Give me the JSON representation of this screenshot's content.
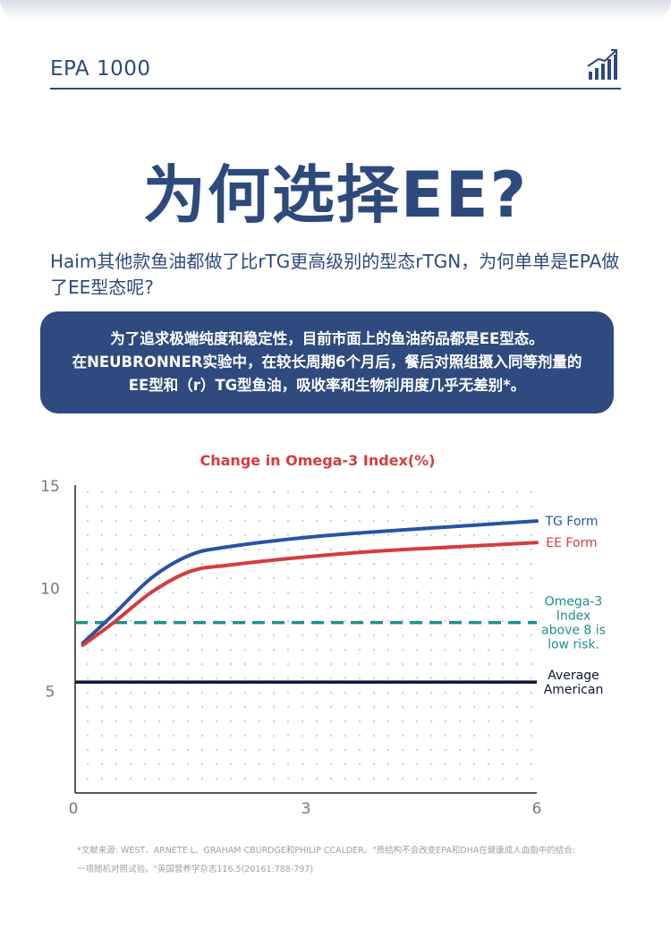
{
  "header": {
    "label": "EPA 1000",
    "icon": "bar-chart-growth-icon"
  },
  "headline": "为何选择EE?",
  "intro": "Haim其他款鱼油都做了比rTG更高级别的型态rTGN，为何单单是EPA做了EE型态呢?",
  "callout": {
    "line1": "为了追求极端纯度和稳定性，目前市面上的鱼油药品都是EE型态。",
    "line2": "在NEUBRONNER实验中，在较长周期6个月后，餐后对照组摄入同等剂量的",
    "line3": "EE型和（r）TG型鱼油，吸收率和生物利用度几乎无差别*。"
  },
  "chart_data": {
    "type": "line",
    "title": "Change in Omega-3 Index(%)",
    "xlabel": "",
    "ylabel": "",
    "xlim": [
      0,
      6
    ],
    "ylim": [
      0,
      15
    ],
    "xticks": [
      0,
      3,
      6
    ],
    "yticks": [
      5,
      10,
      15
    ],
    "grid": "dotted",
    "series": [
      {
        "name": "TG Form",
        "color": "#2754a4",
        "x": [
          0.1,
          0.5,
          1.0,
          1.5,
          2.0,
          3.0,
          4.0,
          5.0,
          6.0
        ],
        "y": [
          7.3,
          8.7,
          10.5,
          11.6,
          12.0,
          12.45,
          12.75,
          13.0,
          13.25
        ]
      },
      {
        "name": "EE Form",
        "color": "#d43c3c",
        "x": [
          0.1,
          0.5,
          1.0,
          1.5,
          2.0,
          3.0,
          4.0,
          5.0,
          6.0
        ],
        "y": [
          7.2,
          8.3,
          9.8,
          10.8,
          11.1,
          11.5,
          11.8,
          12.0,
          12.2
        ]
      }
    ],
    "reference_lines": [
      {
        "label": "Omega-3 Index above 8 is low risk.",
        "lines": [
          "Omega-3",
          "Index",
          "above 8 is",
          "low risk."
        ],
        "y": 8.3,
        "color": "#1f8f8c",
        "style": "dashed"
      },
      {
        "label": "Average American",
        "lines": [
          "Average",
          "American"
        ],
        "y": 5.4,
        "color": "#0c1533",
        "style": "solid"
      }
    ]
  },
  "footnote": {
    "line1": "*文献来源: WEST、ARNETE L、GRAHAM CBURDGE和PHILIP CCALDER。\"质结构不会改变EPA和DHA在健康成人血脂中的结合:",
    "line2": "一项随机对照试验。\"英国营养学杂志116.5(20161:788-797)"
  }
}
